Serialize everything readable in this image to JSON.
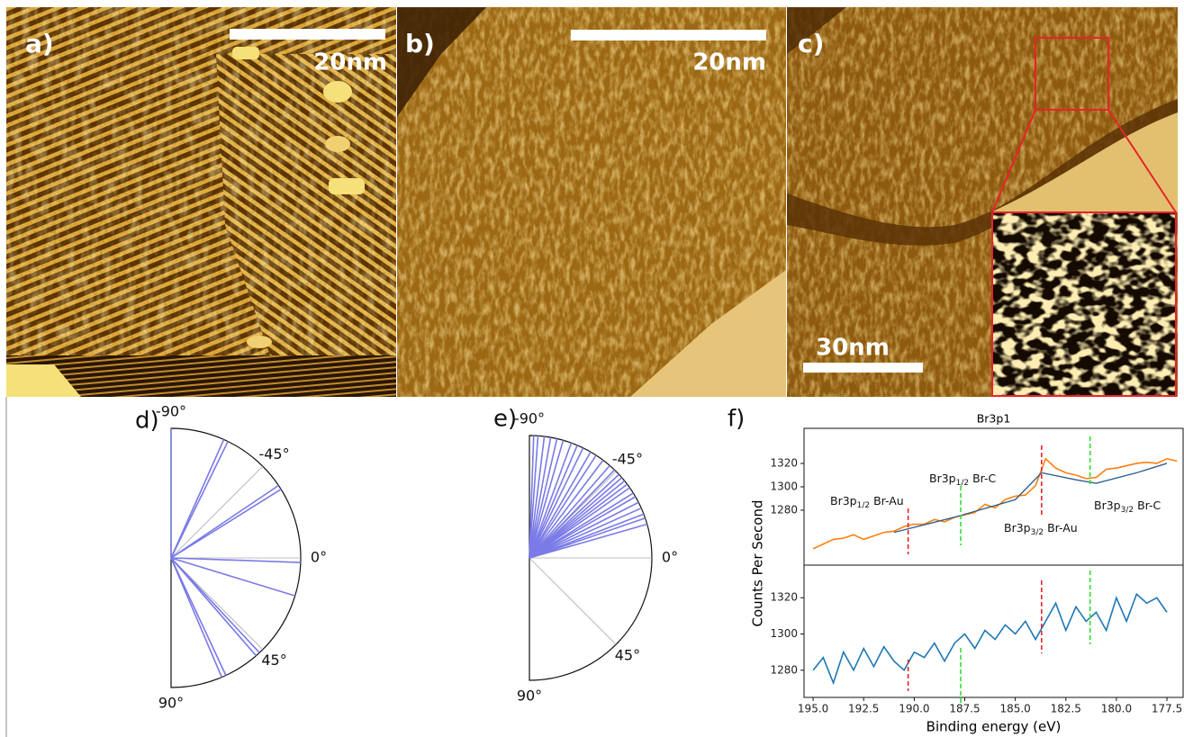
{
  "images": [
    {
      "label": "a)",
      "scale_bar": "20nm"
    },
    {
      "label": "b)",
      "scale_bar": "20nm"
    },
    {
      "label": "c)",
      "scale_bar": "30nm"
    }
  ],
  "chart_data": [
    {
      "type": "polar",
      "label": "d)",
      "color": "#7a7ae8",
      "values": [
        -90,
        -66,
        -64,
        -34,
        -32,
        2,
        17,
        47,
        49,
        65,
        67
      ],
      "thetalim": [
        -90,
        90
      ],
      "thetaticks": [
        {
          "value": -90,
          "label": "-90°"
        },
        {
          "value": -45,
          "label": "-45°"
        },
        {
          "value": 0,
          "label": "0°"
        },
        {
          "value": 45,
          "label": "45°"
        },
        {
          "value": 90,
          "label": "90°"
        }
      ]
    },
    {
      "type": "polar",
      "label": "e)",
      "color": "#7a7ae8",
      "values": [
        -88,
        -86,
        -83,
        -80,
        -77,
        -74,
        -70,
        -67,
        -64,
        -60,
        -57,
        -53,
        -49,
        -46,
        -43,
        -41,
        -39,
        -37,
        -35,
        -32,
        -30,
        -27,
        -24,
        -21,
        -19,
        -16
      ],
      "thetalim": [
        -90,
        90
      ],
      "thetaticks": [
        {
          "value": -90,
          "label": "-90°"
        },
        {
          "value": -45,
          "label": "-45°"
        },
        {
          "value": 0,
          "label": "0°"
        },
        {
          "value": 45,
          "label": "45°"
        },
        {
          "value": 90,
          "label": "90°"
        }
      ]
    },
    {
      "type": "line",
      "label": "f)",
      "title": "Br3p1",
      "xlabel": "Binding energy (eV)",
      "ylabel": "Counts Per Second",
      "x": [
        195,
        194.5,
        194,
        193.5,
        193,
        192.5,
        192,
        191.5,
        191,
        190.5,
        190,
        189.5,
        189,
        188.5,
        188,
        187.5,
        187,
        186.5,
        186,
        185.5,
        185,
        184.5,
        184,
        183.5,
        183,
        182.5,
        182,
        181.5,
        181,
        180.5,
        180,
        179.5,
        179,
        178.5,
        178,
        177.5,
        177
      ],
      "xlim": [
        195.45,
        176.7
      ],
      "xticks": [
        {
          "value": 195,
          "label": "195.0"
        },
        {
          "value": 192.5,
          "label": "192.5"
        },
        {
          "value": 190,
          "label": "190.0"
        },
        {
          "value": 187.5,
          "label": "187.5"
        },
        {
          "value": 185,
          "label": "185.0"
        },
        {
          "value": 182.5,
          "label": "182.5"
        },
        {
          "value": 180,
          "label": "180.0"
        },
        {
          "value": 177.5,
          "label": "177.5"
        }
      ],
      "panels": [
        {
          "ylim": [
            1233,
            1350
          ],
          "yticks": [
            1280,
            1300,
            1320
          ],
          "series": [
            {
              "color": "#ff7f0e",
              "values": [
                1247,
                1251,
                1255,
                1256,
                1259,
                1255,
                1258,
                1261,
                1262,
                1266,
                1268,
                1268,
                1272,
                1270,
                1274,
                1276,
                1278,
                1285,
                1282,
                1289,
                1292,
                1293,
                1301,
                1324,
                1316,
                1312,
                1310,
                1307,
                1308,
                1315,
                1316,
                1318,
                1320,
                1321,
                1320,
                1324,
                1322
              ]
            },
            {
              "color": "#2f5f8f",
              "x": [
                191,
                188,
                185,
                183.7,
                182,
                181,
                179,
                177.5
              ],
              "values": [
                1261,
                1274,
                1289,
                1312,
                1306,
                1303,
                1312,
                1320
              ]
            }
          ]
        },
        {
          "ylim": [
            1265,
            1338
          ],
          "yticks": [
            1280,
            1300,
            1320
          ],
          "series": [
            {
              "color": "#1f77b4",
              "values": [
                1280,
                1287,
                1273,
                1290,
                1280,
                1292,
                1282,
                1293,
                1285,
                1280,
                1290,
                1287,
                1295,
                1285,
                1295,
                1300,
                1292,
                1302,
                1297,
                1305,
                1300,
                1307,
                1297,
                1307,
                1317,
                1302,
                1315,
                1307,
                1312,
                1302,
                1320,
                1307,
                1322,
                1317,
                1320,
                1312,
                null
              ]
            }
          ]
        }
      ],
      "markers": [
        {
          "x": 190.3,
          "color": "#e8232a",
          "label": [
            "Br3p",
            "1/2",
            "Br-Au"
          ]
        },
        {
          "x": 187.7,
          "color": "#2ee02e",
          "label": [
            "Br3p",
            "1/2",
            "Br-C"
          ]
        },
        {
          "x": 183.7,
          "color": "#e8232a",
          "label": [
            "Br3p",
            "3/2",
            "Br-Au"
          ]
        },
        {
          "x": 181.3,
          "color": "#2ee02e",
          "label": [
            "Br3p",
            "3/2",
            "Br-C"
          ]
        }
      ]
    }
  ]
}
